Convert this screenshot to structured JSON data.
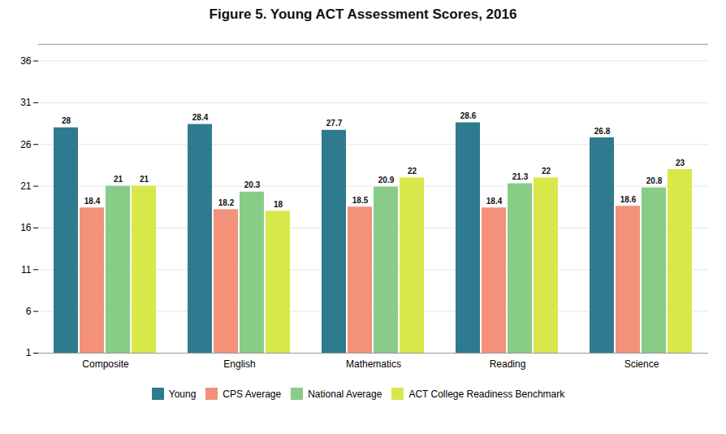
{
  "chart_data": {
    "type": "bar",
    "title": "Figure 5. Young ACT Assessment Scores, 2016",
    "categories": [
      "Composite",
      "English",
      "Mathematics",
      "Reading",
      "Science"
    ],
    "series": [
      {
        "name": "Young",
        "color": "#2e7a8f",
        "values": [
          28,
          28.4,
          27.7,
          28.6,
          26.8
        ]
      },
      {
        "name": "CPS Average",
        "color": "#f4917a",
        "values": [
          18.4,
          18.2,
          18.5,
          18.4,
          18.6
        ]
      },
      {
        "name": "National Average",
        "color": "#88cc88",
        "values": [
          21,
          20.3,
          20.9,
          21.3,
          20.8
        ]
      },
      {
        "name": "ACT College Readiness Benchmark",
        "color": "#d8e84a",
        "values": [
          21,
          18,
          22,
          22,
          23
        ]
      }
    ],
    "ylim": [
      1,
      38
    ],
    "yticks": [
      1,
      6,
      11,
      16,
      21,
      26,
      31,
      36
    ],
    "grid": true,
    "legend": "bottom",
    "data_labels": true
  }
}
